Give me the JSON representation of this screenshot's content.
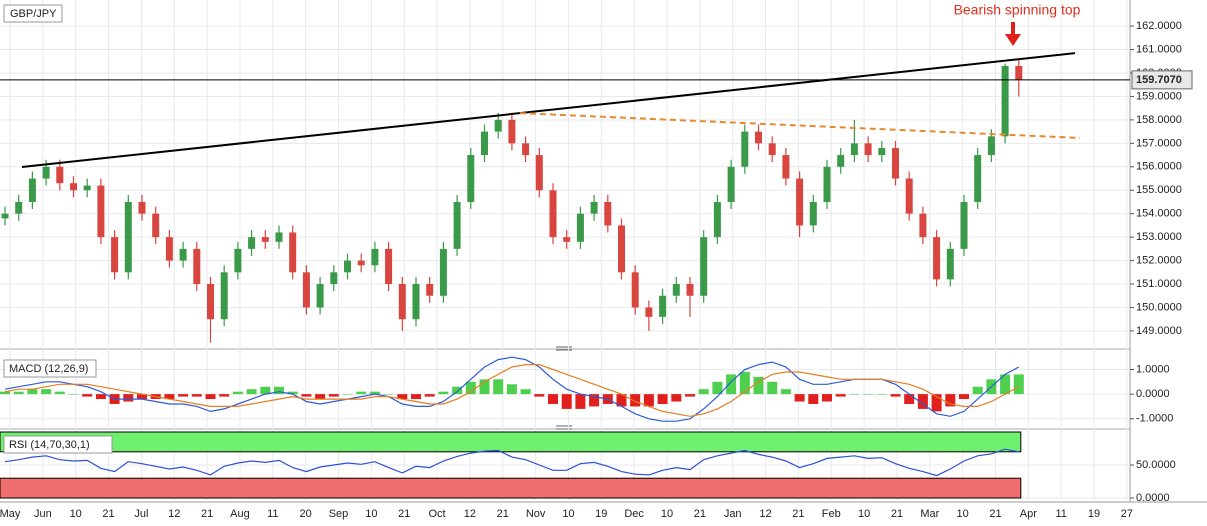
{
  "chart_data": {
    "type": "candlestick",
    "title": "GBP/JPY",
    "annotation": "Bearish spinning top",
    "x_labels": [
      "May",
      "Jun",
      "10",
      "21",
      "Jul",
      "12",
      "21",
      "Aug",
      "11",
      "20",
      "Sep",
      "10",
      "21",
      "Oct",
      "12",
      "21",
      "Nov",
      "10",
      "19",
      "Dec",
      "10",
      "21",
      "Jan",
      "12",
      "21",
      "Feb",
      "10",
      "21",
      "Mar",
      "10",
      "21",
      "Apr",
      "11",
      "19",
      "27"
    ],
    "up_color": "#3b9a4a",
    "down_color": "#d9453f",
    "grid": true,
    "ylim": [
      148.4,
      162.9
    ],
    "yticks": [
      {
        "value": 149,
        "label": "149.0000"
      },
      {
        "value": 150,
        "label": "150.0000"
      },
      {
        "value": 151,
        "label": "151.0000"
      },
      {
        "value": 152,
        "label": "152.0000"
      },
      {
        "value": 153,
        "label": "153.0000"
      },
      {
        "value": 154,
        "label": "154.0000"
      },
      {
        "value": 155,
        "label": "155.0000"
      },
      {
        "value": 156,
        "label": "156.0000"
      },
      {
        "value": 157,
        "label": "157.0000"
      },
      {
        "value": 158,
        "label": "158.0000"
      },
      {
        "value": 159,
        "label": "159.0000"
      },
      {
        "value": 160,
        "label": "160.0000"
      },
      {
        "value": 161,
        "label": "161.0000"
      },
      {
        "value": 162,
        "label": "162.0000"
      }
    ],
    "last_price": {
      "value": 159.707,
      "label": "159.7070"
    },
    "trendlines": [
      {
        "color": "#000000",
        "dashed": false,
        "y": [
          155.99,
          160.85
        ]
      },
      {
        "color": "#e8892b",
        "dashed": true,
        "y": [
          158.29,
          157.23
        ]
      }
    ],
    "candles": [
      [
        153.8,
        154.3,
        153.5,
        154.0
      ],
      [
        154.0,
        154.8,
        153.7,
        154.5
      ],
      [
        154.5,
        155.8,
        154.2,
        155.5
      ],
      [
        155.5,
        156.3,
        155.2,
        156.0
      ],
      [
        156.0,
        156.3,
        155.0,
        155.3
      ],
      [
        155.3,
        155.6,
        154.7,
        155.0
      ],
      [
        155.0,
        155.5,
        154.7,
        155.2
      ],
      [
        155.2,
        155.5,
        152.7,
        153.0
      ],
      [
        153.0,
        153.3,
        151.2,
        151.5
      ],
      [
        151.5,
        154.8,
        151.2,
        154.5
      ],
      [
        154.5,
        154.8,
        153.7,
        154.0
      ],
      [
        154.0,
        154.3,
        152.7,
        153.0
      ],
      [
        153.0,
        153.3,
        151.7,
        152.0
      ],
      [
        152.0,
        152.8,
        151.7,
        152.5
      ],
      [
        152.5,
        152.8,
        150.7,
        151.0
      ],
      [
        151.0,
        151.3,
        148.5,
        149.5
      ],
      [
        149.5,
        151.8,
        149.2,
        151.5
      ],
      [
        151.5,
        152.8,
        151.2,
        152.5
      ],
      [
        152.5,
        153.3,
        152.2,
        153.0
      ],
      [
        153.0,
        153.3,
        152.5,
        152.8
      ],
      [
        152.8,
        153.5,
        152.5,
        153.2
      ],
      [
        153.2,
        153.5,
        151.2,
        151.5
      ],
      [
        151.5,
        151.8,
        149.7,
        150.0
      ],
      [
        150.0,
        151.3,
        149.7,
        151.0
      ],
      [
        151.0,
        151.8,
        150.7,
        151.5
      ],
      [
        151.5,
        152.3,
        151.2,
        152.0
      ],
      [
        152.0,
        152.3,
        151.5,
        151.8
      ],
      [
        151.8,
        152.8,
        151.5,
        152.5
      ],
      [
        152.5,
        152.8,
        150.7,
        151.0
      ],
      [
        151.0,
        151.3,
        149.0,
        149.5
      ],
      [
        149.5,
        151.3,
        149.2,
        151.0
      ],
      [
        151.0,
        151.3,
        150.2,
        150.5
      ],
      [
        150.5,
        152.8,
        150.2,
        152.5
      ],
      [
        152.5,
        154.8,
        152.2,
        154.5
      ],
      [
        154.5,
        156.8,
        154.2,
        156.5
      ],
      [
        156.5,
        157.8,
        156.2,
        157.5
      ],
      [
        157.5,
        158.3,
        157.2,
        158.0
      ],
      [
        158.0,
        158.3,
        156.7,
        157.0
      ],
      [
        157.0,
        157.3,
        156.2,
        156.5
      ],
      [
        156.5,
        156.8,
        154.7,
        155.0
      ],
      [
        155.0,
        155.3,
        152.7,
        153.0
      ],
      [
        153.0,
        153.3,
        152.5,
        152.8
      ],
      [
        152.8,
        154.3,
        152.5,
        154.0
      ],
      [
        154.0,
        154.8,
        153.7,
        154.5
      ],
      [
        154.5,
        154.8,
        153.2,
        153.5
      ],
      [
        153.5,
        153.8,
        151.2,
        151.5
      ],
      [
        151.5,
        151.8,
        149.7,
        150.0
      ],
      [
        150.0,
        150.3,
        149.0,
        149.6
      ],
      [
        149.6,
        150.8,
        149.3,
        150.5
      ],
      [
        150.5,
        151.3,
        150.2,
        151.0
      ],
      [
        151.0,
        151.3,
        149.6,
        150.5
      ],
      [
        150.5,
        153.3,
        150.2,
        153.0
      ],
      [
        153.0,
        154.8,
        152.7,
        154.5
      ],
      [
        154.5,
        156.3,
        154.2,
        156.0
      ],
      [
        156.0,
        157.8,
        155.7,
        157.5
      ],
      [
        157.5,
        157.8,
        156.7,
        157.0
      ],
      [
        157.0,
        157.3,
        156.2,
        156.5
      ],
      [
        156.5,
        156.8,
        155.2,
        155.5
      ],
      [
        155.5,
        155.8,
        153.0,
        153.5
      ],
      [
        153.5,
        154.8,
        153.2,
        154.5
      ],
      [
        154.5,
        156.3,
        154.2,
        156.0
      ],
      [
        156.0,
        156.8,
        155.7,
        156.5
      ],
      [
        156.5,
        158.0,
        156.2,
        157.0
      ],
      [
        157.0,
        157.3,
        156.2,
        156.5
      ],
      [
        156.5,
        157.1,
        156.2,
        156.8
      ],
      [
        156.8,
        157.1,
        155.2,
        155.5
      ],
      [
        155.5,
        155.8,
        153.7,
        154.0
      ],
      [
        154.0,
        154.3,
        152.7,
        153.0
      ],
      [
        153.0,
        153.3,
        150.9,
        151.2
      ],
      [
        151.2,
        152.8,
        150.9,
        152.5
      ],
      [
        152.5,
        154.8,
        152.2,
        154.5
      ],
      [
        154.5,
        156.8,
        154.2,
        156.5
      ],
      [
        156.5,
        157.6,
        156.2,
        157.3
      ],
      [
        157.3,
        160.4,
        157.0,
        160.3
      ],
      [
        160.3,
        160.6,
        159.0,
        159.707
      ]
    ],
    "macd": {
      "title": "MACD (12,26,9)",
      "ylim": [
        -1.375,
        1.71
      ],
      "yticks": [
        {
          "value": 1,
          "label": "1.0000"
        },
        {
          "value": 0,
          "label": "0.0000"
        },
        {
          "value": -1,
          "label": "-1.0000"
        }
      ],
      "series": [
        {
          "color": "#2d5bd8",
          "values": [
            0.2,
            0.3,
            0.4,
            0.5,
            0.5,
            0.4,
            0.3,
            0.1,
            -0.2,
            -0.2,
            -0.2,
            -0.3,
            -0.4,
            -0.4,
            -0.5,
            -0.7,
            -0.6,
            -0.4,
            -0.2,
            0.0,
            0.1,
            0.0,
            -0.3,
            -0.4,
            -0.3,
            -0.2,
            -0.1,
            0.0,
            -0.1,
            -0.4,
            -0.5,
            -0.5,
            -0.3,
            0.1,
            0.6,
            1.1,
            1.4,
            1.5,
            1.4,
            1.1,
            0.6,
            0.2,
            0.0,
            -0.1,
            -0.2,
            -0.5,
            -0.8,
            -1.0,
            -1.1,
            -1.1,
            -1.0,
            -0.6,
            -0.1,
            0.5,
            1.0,
            1.2,
            1.3,
            1.1,
            0.6,
            0.4,
            0.4,
            0.5,
            0.6,
            0.6,
            0.6,
            0.4,
            0.0,
            -0.4,
            -0.8,
            -0.9,
            -0.7,
            -0.2,
            0.3,
            0.8,
            1.1
          ]
        },
        {
          "color": "#e67e22",
          "values": [
            0.1,
            0.2,
            0.2,
            0.3,
            0.4,
            0.4,
            0.4,
            0.3,
            0.2,
            0.1,
            0.0,
            -0.1,
            -0.2,
            -0.3,
            -0.4,
            -0.5,
            -0.5,
            -0.5,
            -0.4,
            -0.3,
            -0.2,
            -0.1,
            -0.2,
            -0.2,
            -0.2,
            -0.2,
            -0.2,
            -0.1,
            -0.1,
            -0.2,
            -0.3,
            -0.4,
            -0.4,
            -0.2,
            0.1,
            0.5,
            0.8,
            1.1,
            1.2,
            1.2,
            1.0,
            0.8,
            0.6,
            0.4,
            0.2,
            0.0,
            -0.3,
            -0.5,
            -0.7,
            -0.8,
            -0.9,
            -0.8,
            -0.6,
            -0.3,
            0.1,
            0.5,
            0.8,
            0.9,
            0.9,
            0.8,
            0.7,
            0.6,
            0.6,
            0.6,
            0.6,
            0.5,
            0.4,
            0.2,
            -0.1,
            -0.4,
            -0.5,
            -0.5,
            -0.3,
            0.0,
            0.3
          ]
        }
      ],
      "hist": {
        "up_color": "#4ed04e",
        "down_color": "#e0201c",
        "values": [
          0.1,
          0.1,
          0.2,
          0.2,
          0.1,
          0.0,
          -0.1,
          -0.2,
          -0.4,
          -0.3,
          -0.2,
          -0.2,
          -0.2,
          -0.1,
          -0.1,
          -0.2,
          -0.1,
          0.1,
          0.2,
          0.3,
          0.3,
          0.1,
          -0.1,
          -0.2,
          -0.1,
          0.0,
          0.1,
          0.1,
          0.0,
          -0.2,
          -0.2,
          -0.1,
          0.1,
          0.3,
          0.5,
          0.6,
          0.6,
          0.4,
          0.2,
          -0.1,
          -0.4,
          -0.6,
          -0.6,
          -0.5,
          -0.4,
          -0.5,
          -0.5,
          -0.5,
          -0.4,
          -0.3,
          -0.1,
          0.2,
          0.5,
          0.8,
          0.9,
          0.7,
          0.5,
          0.2,
          -0.3,
          -0.4,
          -0.3,
          -0.1,
          0.0,
          0.0,
          0.0,
          -0.1,
          -0.4,
          -0.6,
          -0.7,
          -0.5,
          -0.2,
          0.3,
          0.6,
          0.8,
          0.8
        ]
      }
    },
    "rsi": {
      "title": "RSI (14,70,30,1)",
      "ylim": [
        0,
        100
      ],
      "yticks": [
        {
          "value": 50,
          "label": "50.0000"
        },
        {
          "value": 0,
          "label": "0.0000"
        }
      ],
      "upper": 70,
      "lower": 30,
      "upper_color": "#6ef06e",
      "lower_color": "#f06e6e",
      "color": "#2d4fd8",
      "values": [
        55,
        58,
        62,
        64,
        58,
        56,
        57,
        45,
        40,
        55,
        52,
        48,
        44,
        47,
        42,
        35,
        48,
        53,
        56,
        54,
        57,
        46,
        40,
        47,
        50,
        53,
        51,
        55,
        46,
        38,
        48,
        46,
        56,
        63,
        68,
        71,
        72,
        62,
        58,
        50,
        42,
        42,
        52,
        54,
        48,
        40,
        36,
        35,
        42,
        46,
        43,
        58,
        64,
        68,
        72,
        66,
        62,
        56,
        46,
        52,
        60,
        62,
        64,
        60,
        61,
        52,
        45,
        40,
        34,
        44,
        56,
        64,
        67,
        74,
        70
      ]
    }
  }
}
